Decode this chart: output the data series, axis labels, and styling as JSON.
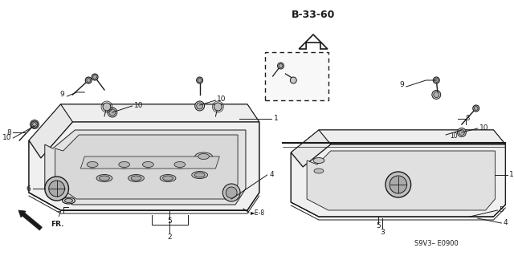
{
  "ref_code": "B-33-60",
  "part_code": "S9V3– E0900",
  "bg_color": "#ffffff",
  "lc": "#1a1a1a",
  "fs": 6.5,
  "e8": "►E-8",
  "fr": "FR."
}
